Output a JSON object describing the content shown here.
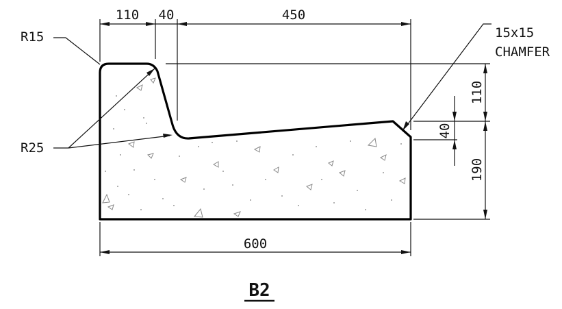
{
  "dimensions": {
    "d110_top": "110",
    "d40_top": "40",
    "d450": "450",
    "d600": "600",
    "d110_right": "110",
    "d40_right": "40",
    "d190": "190"
  },
  "callouts": {
    "r15": "R15",
    "r25": "R25",
    "chamfer_line1": "15x15",
    "chamfer_line2": "CHAMFER"
  },
  "section_title": "B2",
  "colors": {
    "outline": "#000000",
    "dimension": "#111111",
    "aggregate": "#888888"
  }
}
